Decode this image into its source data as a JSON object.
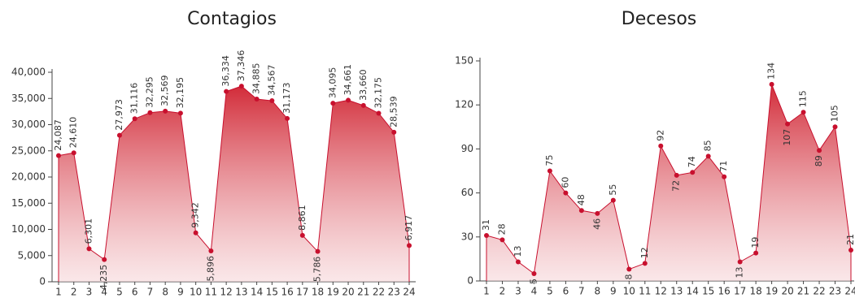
{
  "chart_data": [
    {
      "type": "area",
      "title": "Contagios",
      "color": "#c8102e",
      "categories": [
        "1",
        "2",
        "3",
        "4",
        "5",
        "6",
        "7",
        "8",
        "9",
        "10",
        "11",
        "12",
        "13",
        "14",
        "15",
        "16",
        "17",
        "18",
        "19",
        "20",
        "21",
        "22",
        "23",
        "24"
      ],
      "values": [
        24087,
        24610,
        6301,
        4235,
        27973,
        31116,
        32295,
        32569,
        32195,
        9342,
        5896,
        36334,
        37346,
        34885,
        34567,
        31173,
        8861,
        5786,
        34095,
        34661,
        33660,
        32175,
        28539,
        6917
      ],
      "value_labels": [
        "24,087",
        "24,610",
        "6,301",
        "4,235",
        "27,973",
        "31,116",
        "32,295",
        "32,569",
        "32,195",
        "9,342",
        "5,896",
        "36,334",
        "37,346",
        "34,885",
        "34,567",
        "31,173",
        "8,861",
        "5,786",
        "34,095",
        "34,661",
        "33,660",
        "32,175",
        "28,539",
        "6,917"
      ],
      "ylim": [
        0,
        40000
      ],
      "yticks": [
        0,
        {
          "value": 5000,
          "label": "5,000"
        },
        {
          "value": 10000,
          "label": "10,000"
        },
        {
          "value": 15000,
          "label": "15,000"
        },
        {
          "value": 20000,
          "label": "20,000"
        },
        {
          "value": 25000,
          "label": "25,000"
        },
        {
          "value": 30000,
          "label": "30,000"
        },
        {
          "value": 35000,
          "label": "35,000"
        },
        {
          "value": 40000,
          "label": "40,000"
        }
      ]
    },
    {
      "type": "area",
      "title": "Decesos",
      "color": "#c8102e",
      "categories": [
        "1",
        "2",
        "3",
        "4",
        "5",
        "6",
        "7",
        "8",
        "9",
        "10",
        "11",
        "12",
        "13",
        "14",
        "15",
        "16",
        "17",
        "18",
        "19",
        "20",
        "21",
        "22",
        "23",
        "24"
      ],
      "values": [
        31,
        28,
        13,
        5,
        75,
        60,
        48,
        46,
        55,
        8,
        12,
        92,
        72,
        74,
        85,
        71,
        13,
        19,
        134,
        107,
        115,
        89,
        105,
        21
      ],
      "ylim": [
        0,
        150
      ],
      "yticks": [
        0,
        30,
        60,
        90,
        120,
        150
      ]
    }
  ]
}
